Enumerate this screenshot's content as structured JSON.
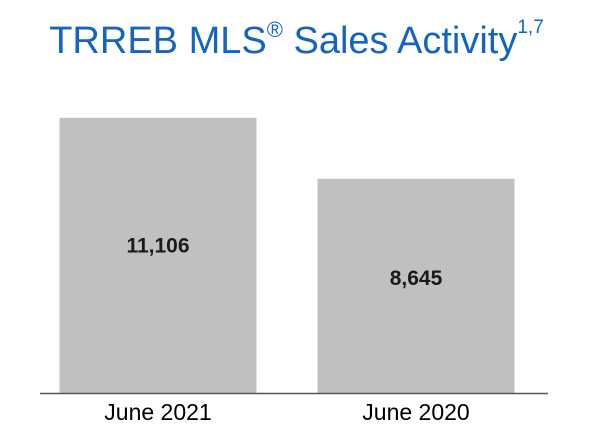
{
  "title": {
    "main": "TRREB MLS",
    "registered_mark": "®",
    "rest": " Sales Activity",
    "superscript": "1,7"
  },
  "colors": {
    "title": "#1565c0",
    "bar": "#c0c0c0",
    "axis_line": "#555555",
    "value_label": "#1a1a1a",
    "tick_label": "#000000"
  },
  "chart_data": {
    "type": "bar",
    "title": "TRREB MLS® Sales Activity",
    "categories": [
      "June 2021",
      "June 2020"
    ],
    "series": [
      {
        "values": [
          11106,
          8645
        ]
      }
    ],
    "value_labels": [
      "11,106",
      "8,645"
    ],
    "xlabel": "",
    "ylabel": "",
    "ylim": [
      0,
      12150
    ],
    "grid": false,
    "legend": "none"
  }
}
